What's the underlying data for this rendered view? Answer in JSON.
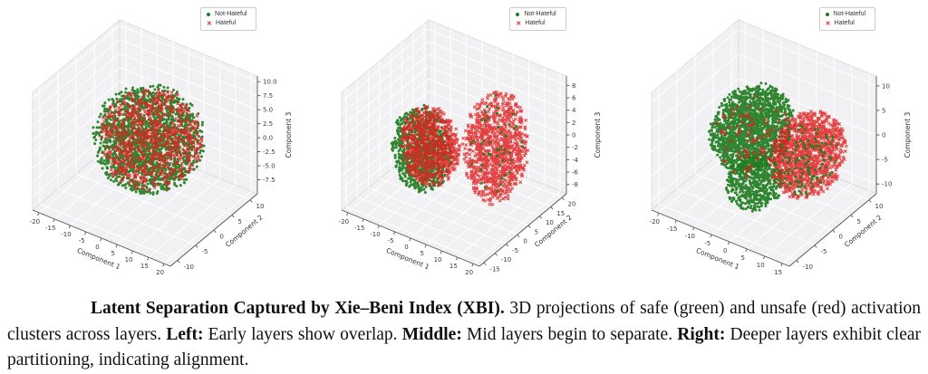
{
  "legend": {
    "items": [
      {
        "label": "Not-Hateful",
        "marker": "dot",
        "color": "#1f7c1f"
      },
      {
        "label": "Hateful",
        "marker": "x",
        "color": "#e02020"
      }
    ]
  },
  "caption": {
    "bold_lead": "Latent Separation Captured by Xie–Beni Index (XBI).",
    "text_1": " 3D projections of safe (green) and unsafe (red) activation clusters across layers. ",
    "bold_left": "Left:",
    "text_2": " Early layers show overlap. ",
    "bold_middle": "Middle:",
    "text_3": " Mid layers begin to separate. ",
    "bold_right": "Right:",
    "text_4": " Deeper layers exhibit clear partitioning, indicating alignment."
  },
  "chart_data": [
    {
      "id": "left",
      "type": "scatter",
      "projection": "3d",
      "title": "",
      "xlabel": "Component 1",
      "ylabel": "Component 2",
      "zlabel": "Component 3",
      "legend_entries": [
        "Not-Hateful",
        "Hateful"
      ],
      "legend_position": "upper right",
      "grid": true,
      "xlim": [
        -22,
        22
      ],
      "ylim": [
        -12,
        12
      ],
      "zlim": [
        -10,
        11
      ],
      "xticks": [
        -20,
        -15,
        -10,
        -5,
        0,
        5,
        10,
        15,
        20
      ],
      "xtick_labels": [
        "-20",
        "-15",
        "-10",
        "-5",
        "0",
        "5",
        "10",
        "15",
        "20"
      ],
      "yticks": [
        -10,
        -5,
        0,
        5,
        10
      ],
      "ytick_labels": [
        "-10",
        "-5",
        "0",
        "5",
        "10"
      ],
      "zticks": [
        -7.5,
        -5,
        -2.5,
        0,
        2.5,
        5,
        7.5,
        10
      ],
      "ztick_labels": [
        "-7.5",
        "-5.0",
        "-2.5",
        "0.0",
        "2.5",
        "5.0",
        "7.5",
        "10.0"
      ],
      "series": [
        {
          "name": "Not-Hateful",
          "marker": "circle",
          "color": "#1f7c1f",
          "count": 1900,
          "center": [
            0.5,
            0.5,
            1.0
          ],
          "radii": [
            15,
            9,
            8
          ]
        },
        {
          "name": "Hateful",
          "marker": "x",
          "color": "#e02020",
          "count": 800,
          "center": [
            1.5,
            0.5,
            1.2
          ],
          "radii": [
            14,
            8.5,
            7.5
          ]
        }
      ]
    },
    {
      "id": "middle",
      "type": "scatter",
      "projection": "3d",
      "title": "",
      "xlabel": "Component 1",
      "ylabel": "Component 2",
      "zlabel": "Component 3",
      "legend_entries": [
        "Not-Hateful",
        "Hateful"
      ],
      "legend_position": "upper right",
      "grid": true,
      "xlim": [
        -22,
        22
      ],
      "ylim": [
        -17,
        22
      ],
      "zlim": [
        -9.5,
        9.5
      ],
      "xticks": [
        -20,
        -15,
        -10,
        -5,
        0,
        5,
        10,
        15,
        20
      ],
      "xtick_labels": [
        "-20",
        "-15",
        "-10",
        "-5",
        "0",
        "5",
        "10",
        "15",
        "20"
      ],
      "yticks": [
        -15,
        -10,
        -5,
        0,
        5,
        10,
        15,
        20
      ],
      "ytick_labels": [
        "-15",
        "-10",
        "-5",
        "0",
        "5",
        "10",
        "15",
        "20"
      ],
      "zticks": [
        -8,
        -6,
        -4,
        -2,
        0,
        2,
        4,
        6,
        8
      ],
      "ztick_labels": [
        "-8",
        "-6",
        "-4",
        "-2",
        "0",
        "2",
        "4",
        "6",
        "8"
      ],
      "series": [
        {
          "name": "Not-Hateful",
          "marker": "circle",
          "color": "#1f7c1f",
          "count": 1000,
          "center": [
            -7,
            -2,
            -1
          ],
          "radii": [
            8.5,
            7.5,
            6.5
          ]
        },
        {
          "name": "Hateful",
          "marker": "x",
          "color": "#e02020",
          "count": 800,
          "center": [
            -5,
            -1,
            -0.5
          ],
          "radii": [
            8.5,
            7,
            6
          ]
        },
        {
          "name": "Hateful",
          "marker": "x",
          "color": "#e02020",
          "count": 1000,
          "center": [
            10,
            7,
            0
          ],
          "radii": [
            8,
            10,
            8.8
          ]
        },
        {
          "name": "Not-Hateful",
          "marker": "circle",
          "color": "#1f7c1f",
          "count": 45,
          "center": [
            10,
            7,
            0
          ],
          "radii": [
            7,
            9,
            8
          ]
        }
      ]
    },
    {
      "id": "right",
      "type": "scatter",
      "projection": "3d",
      "title": "",
      "xlabel": "Component 1",
      "ylabel": "Component 2",
      "zlabel": "Component 3",
      "legend_entries": [
        "Not-Hateful",
        "Hateful"
      ],
      "legend_position": "upper right",
      "grid": true,
      "xlim": [
        -22,
        17
      ],
      "ylim": [
        -12,
        12
      ],
      "zlim": [
        -12,
        12
      ],
      "xticks": [
        -20,
        -15,
        -10,
        -5,
        0,
        5,
        10,
        15
      ],
      "xtick_labels": [
        "-20",
        "-15",
        "-10",
        "-5",
        "0",
        "5",
        "10",
        "15"
      ],
      "yticks": [
        -10,
        -5,
        0,
        5,
        10
      ],
      "ytick_labels": [
        "-10",
        "-5",
        "0",
        "5",
        "10"
      ],
      "zticks": [
        -10,
        -5,
        0,
        5,
        10
      ],
      "ztick_labels": [
        "-10",
        "-5",
        "0",
        "5",
        "10"
      ],
      "series": [
        {
          "name": "Not-Hateful",
          "marker": "circle",
          "color": "#1f7c1f",
          "count": 1800,
          "center": [
            -7,
            1,
            1
          ],
          "radii": [
            9,
            8,
            7.5
          ]
        },
        {
          "name": "Not-Hateful",
          "marker": "circle",
          "color": "#1f7c1f",
          "count": 600,
          "center": [
            -1,
            -4,
            -5
          ],
          "radii": [
            6.5,
            5,
            5
          ]
        },
        {
          "name": "Hateful",
          "marker": "x",
          "color": "#e02020",
          "count": 90,
          "center": [
            -6,
            0,
            0
          ],
          "radii": [
            9,
            7,
            7
          ]
        },
        {
          "name": "Hateful",
          "marker": "x",
          "color": "#e02020",
          "count": 1200,
          "center": [
            8,
            2,
            -0.5
          ],
          "radii": [
            8,
            7.5,
            7.5
          ]
        },
        {
          "name": "Not-Hateful",
          "marker": "circle",
          "color": "#1f7c1f",
          "count": 130,
          "center": [
            7,
            2,
            -2
          ],
          "radii": [
            7,
            7,
            6
          ]
        }
      ]
    }
  ]
}
